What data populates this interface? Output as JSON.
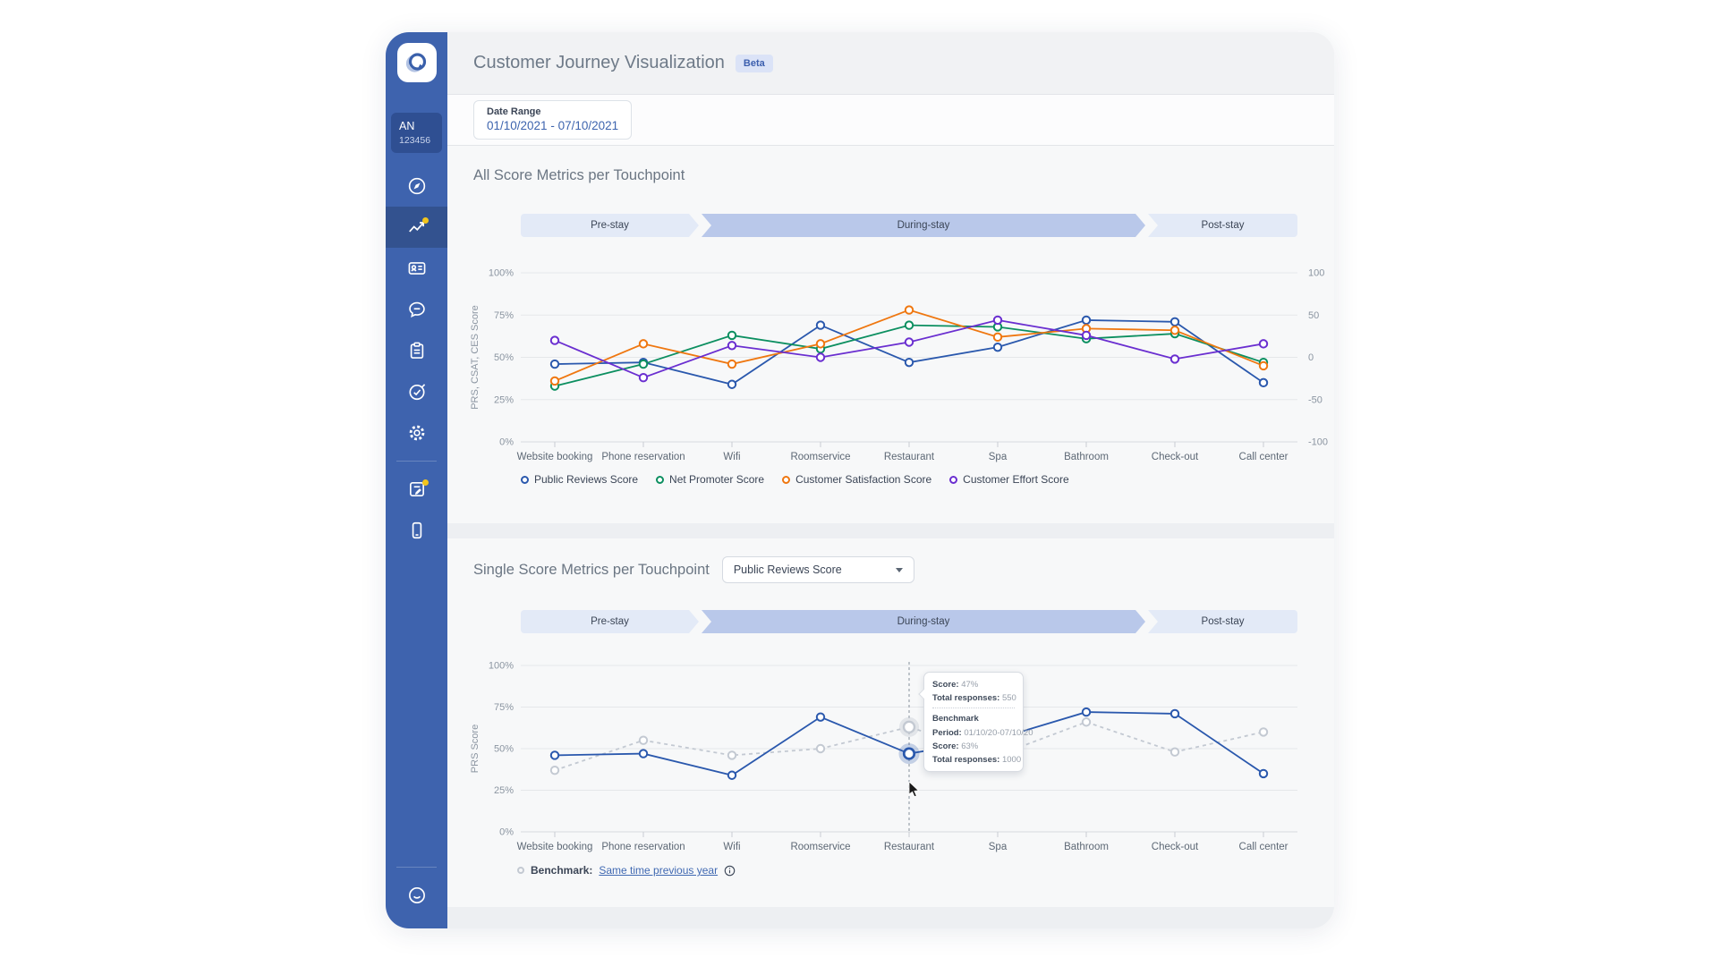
{
  "account": {
    "initials": "AN",
    "number": "123456"
  },
  "sidebar": {
    "icons": [
      "compass",
      "analytics",
      "id-card",
      "chat",
      "clipboard",
      "goals",
      "settings",
      "notes",
      "mobile",
      "smiley"
    ],
    "active_icon": "analytics",
    "notification_dots": [
      "analytics",
      "notes"
    ]
  },
  "header": {
    "title": "Customer Journey Visualization",
    "badge": "Beta"
  },
  "date_range": {
    "label": "Date Range",
    "value": "01/10/2021 - 07/10/2021"
  },
  "journey_phases": [
    "Pre-stay",
    "During-stay",
    "Post-stay"
  ],
  "sections": {
    "all_scores": {
      "title": "All Score Metrics per Touchpoint"
    },
    "single_score": {
      "title": "Single Score Metrics per Touchpoint",
      "metric_selector": "Public Reviews Score"
    }
  },
  "tooltip": {
    "score_label": "Score:",
    "score_value": "47%",
    "responses_label": "Total responses:",
    "responses_value": "550",
    "benchmark_title": "Benchmark",
    "period_label": "Period:",
    "period_value": "01/10/20-07/10/20",
    "benchmark_score_label": "Score:",
    "benchmark_score_value": "63%",
    "benchmark_responses_label": "Total responses:",
    "benchmark_responses_value": "1000"
  },
  "benchmark_legend": {
    "label": "Benchmark:",
    "link": "Same time previous year"
  },
  "colors": {
    "sidebar": "#3e63ae",
    "accent_blue": "#2a58ad",
    "green": "#0c8f60",
    "orange": "#ef7710",
    "purple": "#6a2ed0",
    "benchmark_grey": "#c3c9d2",
    "phase_light": "#e3eaf7",
    "phase_dark": "#b9c8ea",
    "notification_yellow": "#f2c51d"
  },
  "chart_data": [
    {
      "type": "line",
      "title": "All Score Metrics per Touchpoint",
      "categories": [
        "Website booking",
        "Phone reservation",
        "Wifi",
        "Roomservice",
        "Restaurant",
        "Spa",
        "Bathroom",
        "Check-out",
        "Call center"
      ],
      "ylabel": "PRS, CSAT, CES Score",
      "y_ticks": [
        "0%",
        "25%",
        "50%",
        "75%",
        "100%"
      ],
      "right_axis_ticks": [
        100,
        50,
        0,
        -50,
        -100
      ],
      "ylim": [
        0,
        100
      ],
      "grid": true,
      "legend_position": "bottom",
      "series": [
        {
          "name": "Public Reviews Score",
          "color": "#2a58ad",
          "values": [
            46,
            47,
            34,
            69,
            47,
            56,
            72,
            71,
            35
          ]
        },
        {
          "name": "Net Promoter Score",
          "color": "#0c8f60",
          "values": [
            33,
            46,
            63,
            55,
            69,
            68,
            61,
            64,
            47
          ]
        },
        {
          "name": "Customer Satisfaction Score",
          "color": "#ef7710",
          "values": [
            36,
            58,
            46,
            58,
            78,
            62,
            67,
            66,
            45
          ]
        },
        {
          "name": "Customer Effort Score",
          "color": "#6a2ed0",
          "values": [
            60,
            38,
            57,
            50,
            59,
            72,
            63,
            49,
            58
          ]
        }
      ]
    },
    {
      "type": "line",
      "title": "Single Score Metrics per Touchpoint",
      "categories": [
        "Website booking",
        "Phone reservation",
        "Wifi",
        "Roomservice",
        "Restaurant",
        "Spa",
        "Bathroom",
        "Check-out",
        "Call center"
      ],
      "ylabel": "PRS Score",
      "y_ticks": [
        "0%",
        "25%",
        "50%",
        "75%",
        "100%"
      ],
      "ylim": [
        0,
        100
      ],
      "grid": true,
      "series": [
        {
          "name": "Benchmark",
          "color": "#c3c9d2",
          "dashed": true,
          "values": [
            37,
            55,
            46,
            50,
            63,
            46,
            66,
            48,
            60
          ]
        },
        {
          "name": "Public Reviews Score",
          "color": "#2a58ad",
          "dashed": false,
          "values": [
            46,
            47,
            34,
            69,
            47,
            56,
            72,
            71,
            35
          ]
        }
      ],
      "hover": {
        "category": "Restaurant",
        "category_index": 4,
        "score": 47,
        "benchmark_score": 63
      }
    }
  ]
}
